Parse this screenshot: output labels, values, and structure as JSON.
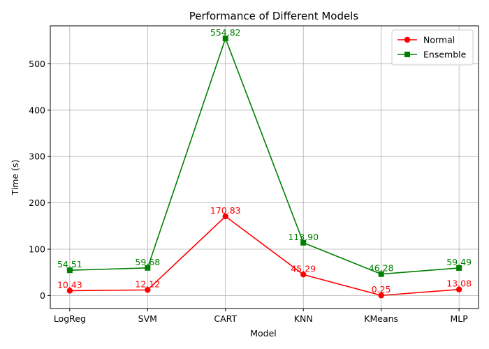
{
  "chart_data": {
    "type": "line",
    "title": "Performance of Different Models",
    "xlabel": "Model",
    "ylabel": "Time (s)",
    "categories": [
      "LogReg",
      "SVM",
      "CART",
      "KNN",
      "KMeans",
      "MLP"
    ],
    "ylim": [
      -28,
      582
    ],
    "yticks": [
      0,
      100,
      200,
      300,
      400,
      500
    ],
    "grid": true,
    "legend_position": "top-right",
    "series": [
      {
        "name": "Normal",
        "color": "#ff0000",
        "marker": "circle",
        "values": [
          10.43,
          12.12,
          170.83,
          45.29,
          0.25,
          13.08
        ],
        "labels": [
          "10.43",
          "12.12",
          "170.83",
          "45.29",
          "0.25",
          "13.08"
        ]
      },
      {
        "name": "Ensemble",
        "color": "#008000",
        "marker": "square",
        "values": [
          54.51,
          59.68,
          554.82,
          113.9,
          46.28,
          59.49
        ],
        "labels": [
          "54.51",
          "59.68",
          "554.82",
          "113.90",
          "46.28",
          "59.49"
        ]
      }
    ]
  }
}
